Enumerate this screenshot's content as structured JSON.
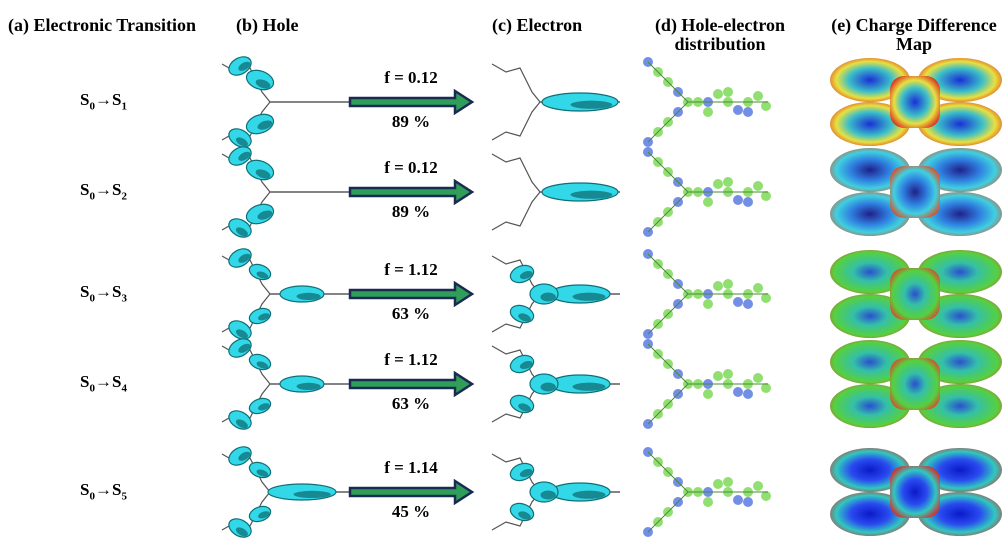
{
  "headers": {
    "a": "(a) Electronic Transition",
    "b": "(b) Hole",
    "c": "(c) Electron",
    "d_line1": "(d) Hole-electron",
    "d_line2": "distribution",
    "e_line1": "(e) Charge Difference",
    "e_line2": "Map"
  },
  "rows": [
    {
      "from": "S",
      "from_sub": "0",
      "to": "S",
      "to_sub": "1",
      "f": "f = 0.12",
      "pct": "89 %"
    },
    {
      "from": "S",
      "from_sub": "0",
      "to": "S",
      "to_sub": "2",
      "f": "f = 0.12",
      "pct": "89 %"
    },
    {
      "from": "S",
      "from_sub": "0",
      "to": "S",
      "to_sub": "3",
      "f": "f = 1.12",
      "pct": "63 %"
    },
    {
      "from": "S",
      "from_sub": "0",
      "to": "S",
      "to_sub": "4",
      "f": "f = 1.12",
      "pct": "63 %"
    },
    {
      "from": "S",
      "from_sub": "0",
      "to": "S",
      "to_sub": "5",
      "f": "f = 1.14",
      "pct": "45 %"
    }
  ],
  "arrow": {
    "fill": "#2e9e58",
    "stroke": "#1b2a52"
  },
  "colors": {
    "orbital": "#33d8e8",
    "orbital_dark": "#0f6f77",
    "hole_e": "#5b7be0",
    "hole_h": "#7ed957"
  }
}
